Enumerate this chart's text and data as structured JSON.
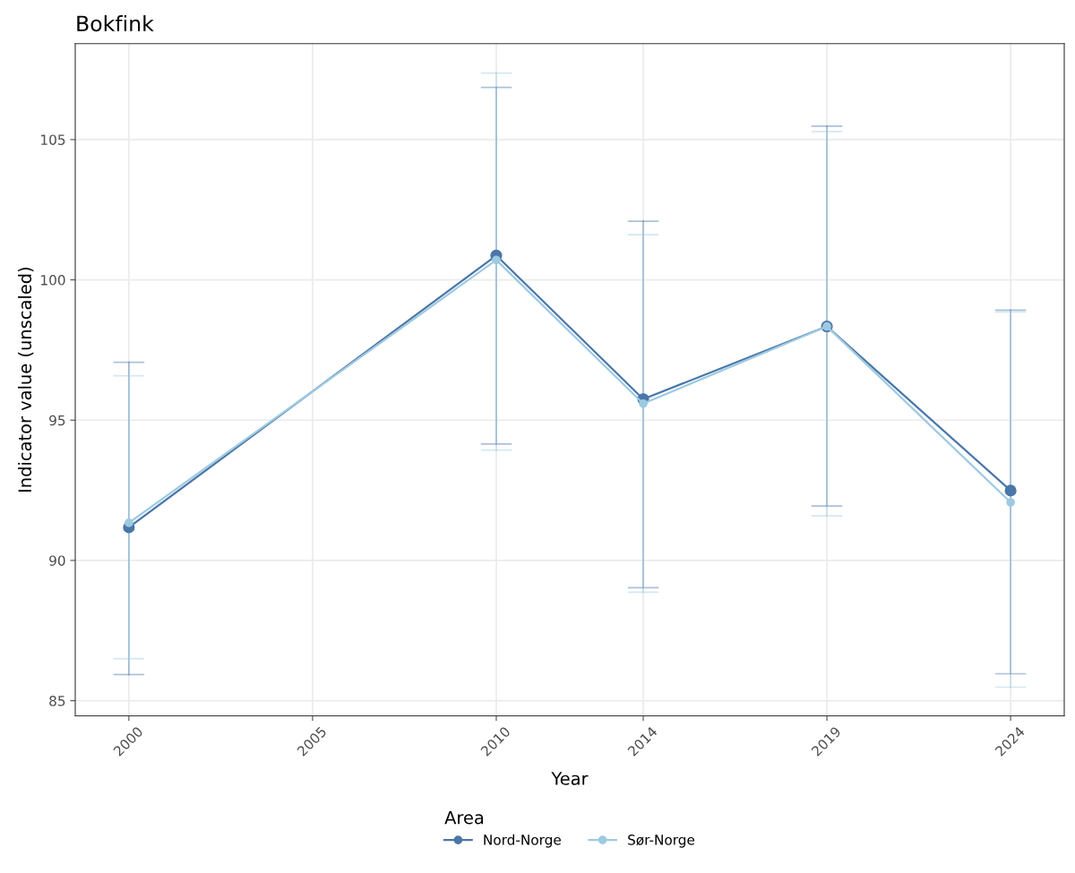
{
  "chart_data": {
    "type": "line",
    "title": "Bokfink",
    "xlabel": "Year",
    "ylabel": "Indicator value (unscaled)",
    "legend_title": "Area",
    "x": [
      2000,
      2010,
      2014,
      2019,
      2024
    ],
    "series": [
      {
        "name": "Nord-Norge",
        "color": "#4a76a8",
        "values": [
          91.18,
          100.87,
          95.75,
          98.34,
          92.49
        ],
        "errors": [
          [
            85.93,
            97.06
          ],
          [
            94.15,
            106.86
          ],
          [
            89.03,
            102.09
          ],
          [
            91.94,
            105.48
          ],
          [
            85.96,
            98.92
          ]
        ]
      },
      {
        "name": "Sør-Norge",
        "color": "#9ecae1",
        "values": [
          91.34,
          100.71,
          95.59,
          98.34,
          92.07
        ],
        "errors": [
          [
            86.5,
            96.58
          ],
          [
            93.93,
            107.37
          ],
          [
            88.87,
            101.61
          ],
          [
            91.59,
            105.29
          ],
          [
            85.48,
            98.86
          ]
        ]
      }
    ],
    "xlim": [
      1998.54,
      2025.46
    ],
    "xticks": [
      2000,
      2005,
      2010,
      2014,
      2019,
      2024
    ],
    "ylim": [
      84.46,
      108.42
    ],
    "yticks": [
      85,
      90,
      95,
      100,
      105
    ],
    "grid": true,
    "legend": "bottom",
    "marker": "circle",
    "line_style": "solid"
  }
}
